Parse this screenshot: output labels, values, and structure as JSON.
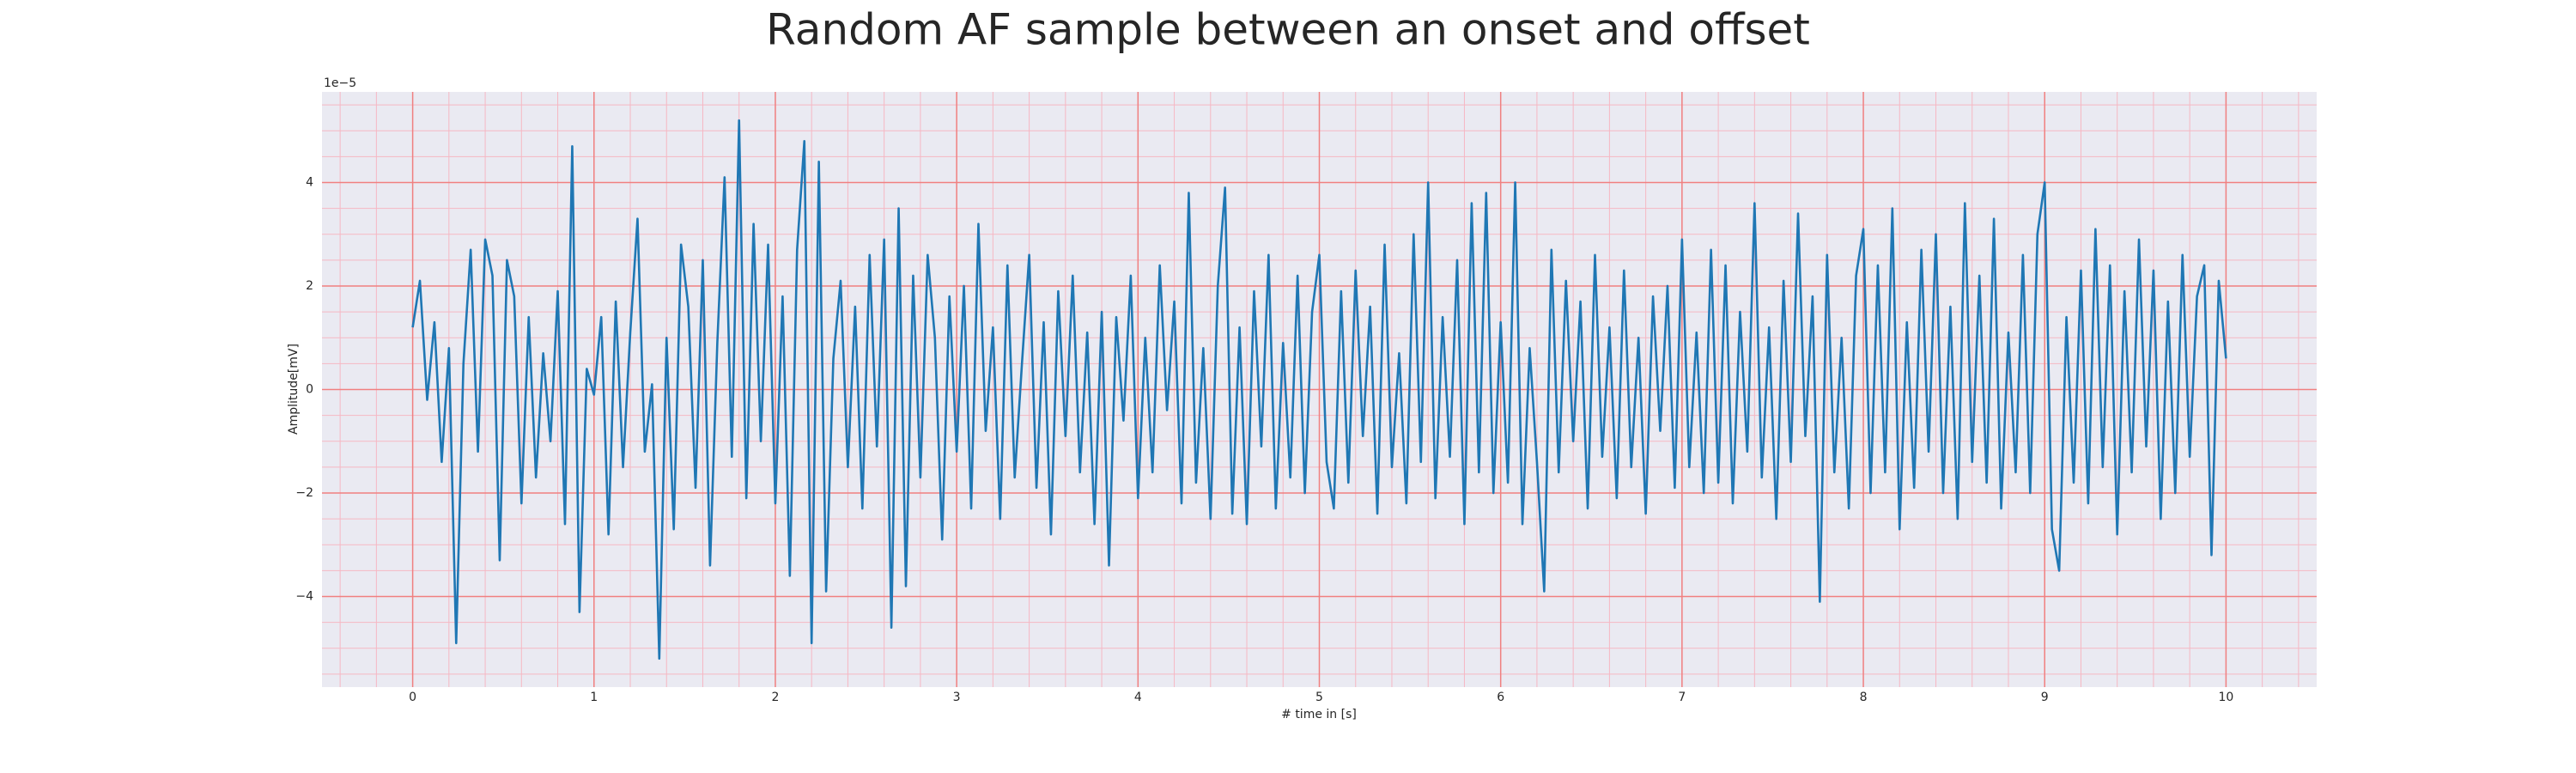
{
  "chart_data": {
    "type": "line",
    "title": "Random AF sample between an onset and offset",
    "xlabel": "# time in [s]",
    "ylabel": "Amplitude[mV]",
    "y_offset_label": "1e−5",
    "color": "#1f77b4",
    "grid": true,
    "minor_grid": {
      "x_step": 0.2,
      "y_step": 0.5
    },
    "xlim": [
      -0.5,
      10.5
    ],
    "ylim": [
      -5.75,
      5.75
    ],
    "xticks": [
      0,
      1,
      2,
      3,
      4,
      5,
      6,
      7,
      8,
      9,
      10
    ],
    "yticks": [
      {
        "value": -4,
        "label": "−4"
      },
      {
        "value": -2,
        "label": "−2"
      },
      0,
      2,
      4
    ],
    "x": [
      0,
      0.04,
      0.08,
      0.12,
      0.16,
      0.2,
      0.24,
      0.28,
      0.32,
      0.36,
      0.4,
      0.44,
      0.48,
      0.52,
      0.56,
      0.6,
      0.64,
      0.68,
      0.72,
      0.76,
      0.8,
      0.84,
      0.88,
      0.92,
      0.96,
      1,
      1.04,
      1.08,
      1.12,
      1.16,
      1.2,
      1.24,
      1.28,
      1.32,
      1.36,
      1.4,
      1.44,
      1.48,
      1.52,
      1.56,
      1.6,
      1.64,
      1.68,
      1.72,
      1.76,
      1.8,
      1.84,
      1.88,
      1.92,
      1.96,
      2,
      2.04,
      2.08,
      2.12,
      2.16,
      2.2,
      2.24,
      2.28,
      2.32,
      2.36,
      2.4,
      2.44,
      2.48,
      2.52,
      2.56,
      2.6,
      2.64,
      2.68,
      2.72,
      2.76,
      2.8,
      2.84,
      2.88,
      2.92,
      2.96,
      3,
      3.04,
      3.08,
      3.12,
      3.16,
      3.2,
      3.24,
      3.28,
      3.32,
      3.36,
      3.4,
      3.44,
      3.48,
      3.52,
      3.56,
      3.6,
      3.64,
      3.68,
      3.72,
      3.76,
      3.8,
      3.84,
      3.88,
      3.92,
      3.96,
      4,
      4.04,
      4.08,
      4.12,
      4.16,
      4.2,
      4.24,
      4.28,
      4.32,
      4.36,
      4.4,
      4.44,
      4.48,
      4.52,
      4.56,
      4.6,
      4.64,
      4.68,
      4.72,
      4.76,
      4.8,
      4.84,
      4.88,
      4.92,
      4.96,
      5,
      5.04,
      5.08,
      5.12,
      5.16,
      5.2,
      5.24,
      5.28,
      5.32,
      5.36,
      5.4,
      5.44,
      5.48,
      5.52,
      5.56,
      5.6,
      5.64,
      5.68,
      5.72,
      5.76,
      5.8,
      5.84,
      5.88,
      5.92,
      5.96,
      6,
      6.04,
      6.08,
      6.12,
      6.16,
      6.2,
      6.24,
      6.28,
      6.32,
      6.36,
      6.4,
      6.44,
      6.48,
      6.52,
      6.56,
      6.6,
      6.64,
      6.68,
      6.72,
      6.76,
      6.8,
      6.84,
      6.88,
      6.92,
      6.96,
      7,
      7.04,
      7.08,
      7.12,
      7.16,
      7.2,
      7.24,
      7.28,
      7.32,
      7.36,
      7.4,
      7.44,
      7.48,
      7.52,
      7.56,
      7.6,
      7.64,
      7.68,
      7.72,
      7.76,
      7.8,
      7.84,
      7.88,
      7.92,
      7.96,
      8,
      8.04,
      8.08,
      8.12,
      8.16,
      8.2,
      8.24,
      8.28,
      8.32,
      8.36,
      8.4,
      8.44,
      8.48,
      8.52,
      8.56,
      8.6,
      8.64,
      8.68,
      8.72,
      8.76,
      8.8,
      8.84,
      8.88,
      8.92,
      8.96,
      9,
      9.04,
      9.08,
      9.12,
      9.16,
      9.2,
      9.24,
      9.28,
      9.32,
      9.36,
      9.4,
      9.44,
      9.48,
      9.52,
      9.56,
      9.6,
      9.64,
      9.68,
      9.72,
      9.76,
      9.8,
      9.84,
      9.88,
      9.92,
      9.96,
      10
    ],
    "values": [
      1.2,
      2.1,
      -0.2,
      1.3,
      -1.4,
      0.8,
      -4.9,
      0.5,
      2.7,
      -1.2,
      2.9,
      2.2,
      -3.3,
      2.5,
      1.8,
      -2.2,
      1.4,
      -1.7,
      0.7,
      -1.0,
      1.9,
      -2.6,
      4.7,
      -4.3,
      0.4,
      -0.1,
      1.4,
      -2.8,
      1.7,
      -1.5,
      1.1,
      3.3,
      -1.2,
      0.1,
      -5.2,
      1.0,
      -2.7,
      2.8,
      1.6,
      -1.9,
      2.5,
      -3.4,
      0.9,
      4.1,
      -1.3,
      5.2,
      -2.1,
      3.2,
      -1.0,
      2.8,
      -2.2,
      1.8,
      -3.6,
      2.7,
      4.8,
      -4.9,
      4.4,
      -3.9,
      0.6,
      2.1,
      -1.5,
      1.6,
      -2.3,
      2.6,
      -1.1,
      2.9,
      -4.6,
      3.5,
      -3.8,
      2.2,
      -1.7,
      2.6,
      1.0,
      -2.9,
      1.8,
      -1.2,
      2.0,
      -2.3,
      3.2,
      -0.8,
      1.2,
      -2.5,
      2.4,
      -1.7,
      0.5,
      2.6,
      -1.9,
      1.3,
      -2.8,
      1.9,
      -0.9,
      2.2,
      -1.6,
      1.1,
      -2.6,
      1.5,
      -3.4,
      1.4,
      -0.6,
      2.2,
      -2.1,
      1.0,
      -1.6,
      2.4,
      -0.4,
      1.7,
      -2.2,
      3.8,
      -1.8,
      0.8,
      -2.5,
      2.0,
      3.9,
      -2.4,
      1.2,
      -2.6,
      1.9,
      -1.1,
      2.6,
      -2.3,
      0.9,
      -1.7,
      2.2,
      -2.0,
      1.5,
      2.6,
      -1.4,
      -2.3,
      1.9,
      -1.8,
      2.3,
      -0.9,
      1.6,
      -2.4,
      2.8,
      -1.5,
      0.7,
      -2.2,
      3.0,
      -1.4,
      4.0,
      -2.1,
      1.4,
      -1.3,
      2.5,
      -2.6,
      3.6,
      -1.6,
      3.8,
      -2.0,
      1.3,
      -1.8,
      4.0,
      -2.6,
      0.8,
      -1.4,
      -3.9,
      2.7,
      -1.6,
      2.1,
      -1.0,
      1.7,
      -2.3,
      2.6,
      -1.3,
      1.2,
      -2.1,
      2.3,
      -1.5,
      1.0,
      -2.4,
      1.8,
      -0.8,
      2.0,
      -1.9,
      2.9,
      -1.5,
      1.1,
      -2.0,
      2.7,
      -1.8,
      2.4,
      -2.2,
      1.5,
      -1.2,
      3.6,
      -1.7,
      1.2,
      -2.5,
      2.1,
      -1.4,
      3.4,
      -0.9,
      1.8,
      -4.1,
      2.6,
      -1.6,
      1.0,
      -2.3,
      2.2,
      3.1,
      -2.0,
      2.4,
      -1.6,
      3.5,
      -2.7,
      1.3,
      -1.9,
      2.7,
      -1.2,
      3.0,
      -2.0,
      1.6,
      -2.5,
      3.6,
      -1.4,
      2.2,
      -1.8,
      3.3,
      -2.3,
      1.1,
      -1.6,
      2.6,
      -2.0,
      3.0,
      4.0,
      -2.7,
      -3.5,
      1.4,
      -1.8,
      2.3,
      -2.2,
      3.1,
      -1.5,
      2.4,
      -2.8,
      1.9,
      -1.6,
      2.9,
      -1.1,
      2.3,
      -2.5,
      1.7,
      -2.0,
      2.6,
      -1.3,
      1.8,
      2.4,
      -3.2,
      2.1,
      0.6
    ]
  }
}
